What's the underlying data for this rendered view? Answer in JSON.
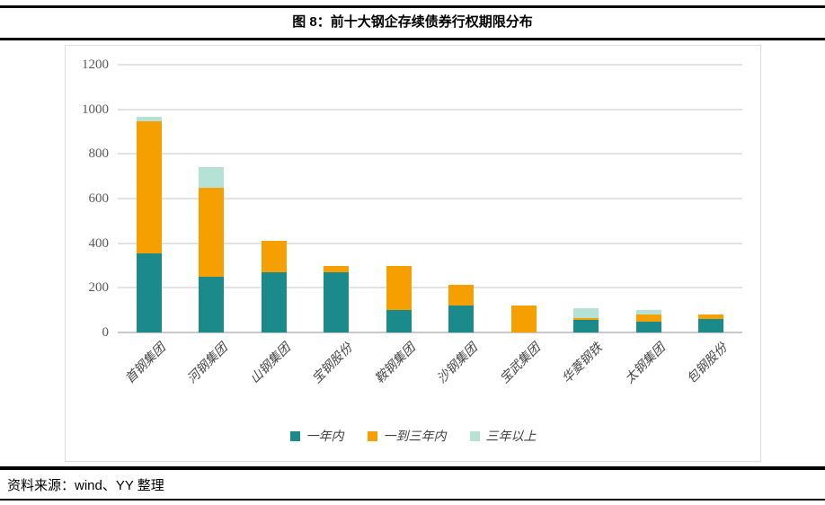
{
  "header": {
    "title": "图 8：前十大钢企存续债券行权期限分布"
  },
  "footer": {
    "source": "资料来源：wind、YY 整理"
  },
  "colors": {
    "within_one_year": "#1B8A8A",
    "one_to_three_years": "#F5A000",
    "over_three_years": "#B6E2D6",
    "gridline": "#E2E2E2",
    "axis_baseline": "#C9C9C9",
    "tick_text": "#595959"
  },
  "chart_data": {
    "type": "bar",
    "stacked": true,
    "title": "图 8：前十大钢企存续债券行权期限分布",
    "xlabel": "",
    "ylabel": "",
    "categories": [
      "首钢集团",
      "河钢集团",
      "山钢集团",
      "宝钢股份",
      "鞍钢集团",
      "沙钢集团",
      "宝武集团",
      "华菱钢铁",
      "太钢集团",
      "包钢股份"
    ],
    "series": [
      {
        "name": "一年内",
        "color": "#1B8A8A",
        "values": [
          355,
          250,
          270,
          270,
          100,
          120,
          0,
          55,
          50,
          60
        ]
      },
      {
        "name": "一到三年内",
        "color": "#F5A000",
        "values": [
          590,
          400,
          140,
          30,
          200,
          95,
          120,
          10,
          30,
          20
        ]
      },
      {
        "name": "三年以上",
        "color": "#B6E2D6",
        "values": [
          20,
          90,
          0,
          0,
          0,
          0,
          0,
          45,
          20,
          0
        ]
      }
    ],
    "totals": [
      965,
      740,
      410,
      300,
      300,
      215,
      120,
      110,
      100,
      80
    ],
    "ylim": [
      0,
      1200
    ],
    "yticks": [
      0,
      200,
      400,
      600,
      800,
      1000,
      1200
    ],
    "grid": "horizontal",
    "legend_position": "bottom"
  }
}
